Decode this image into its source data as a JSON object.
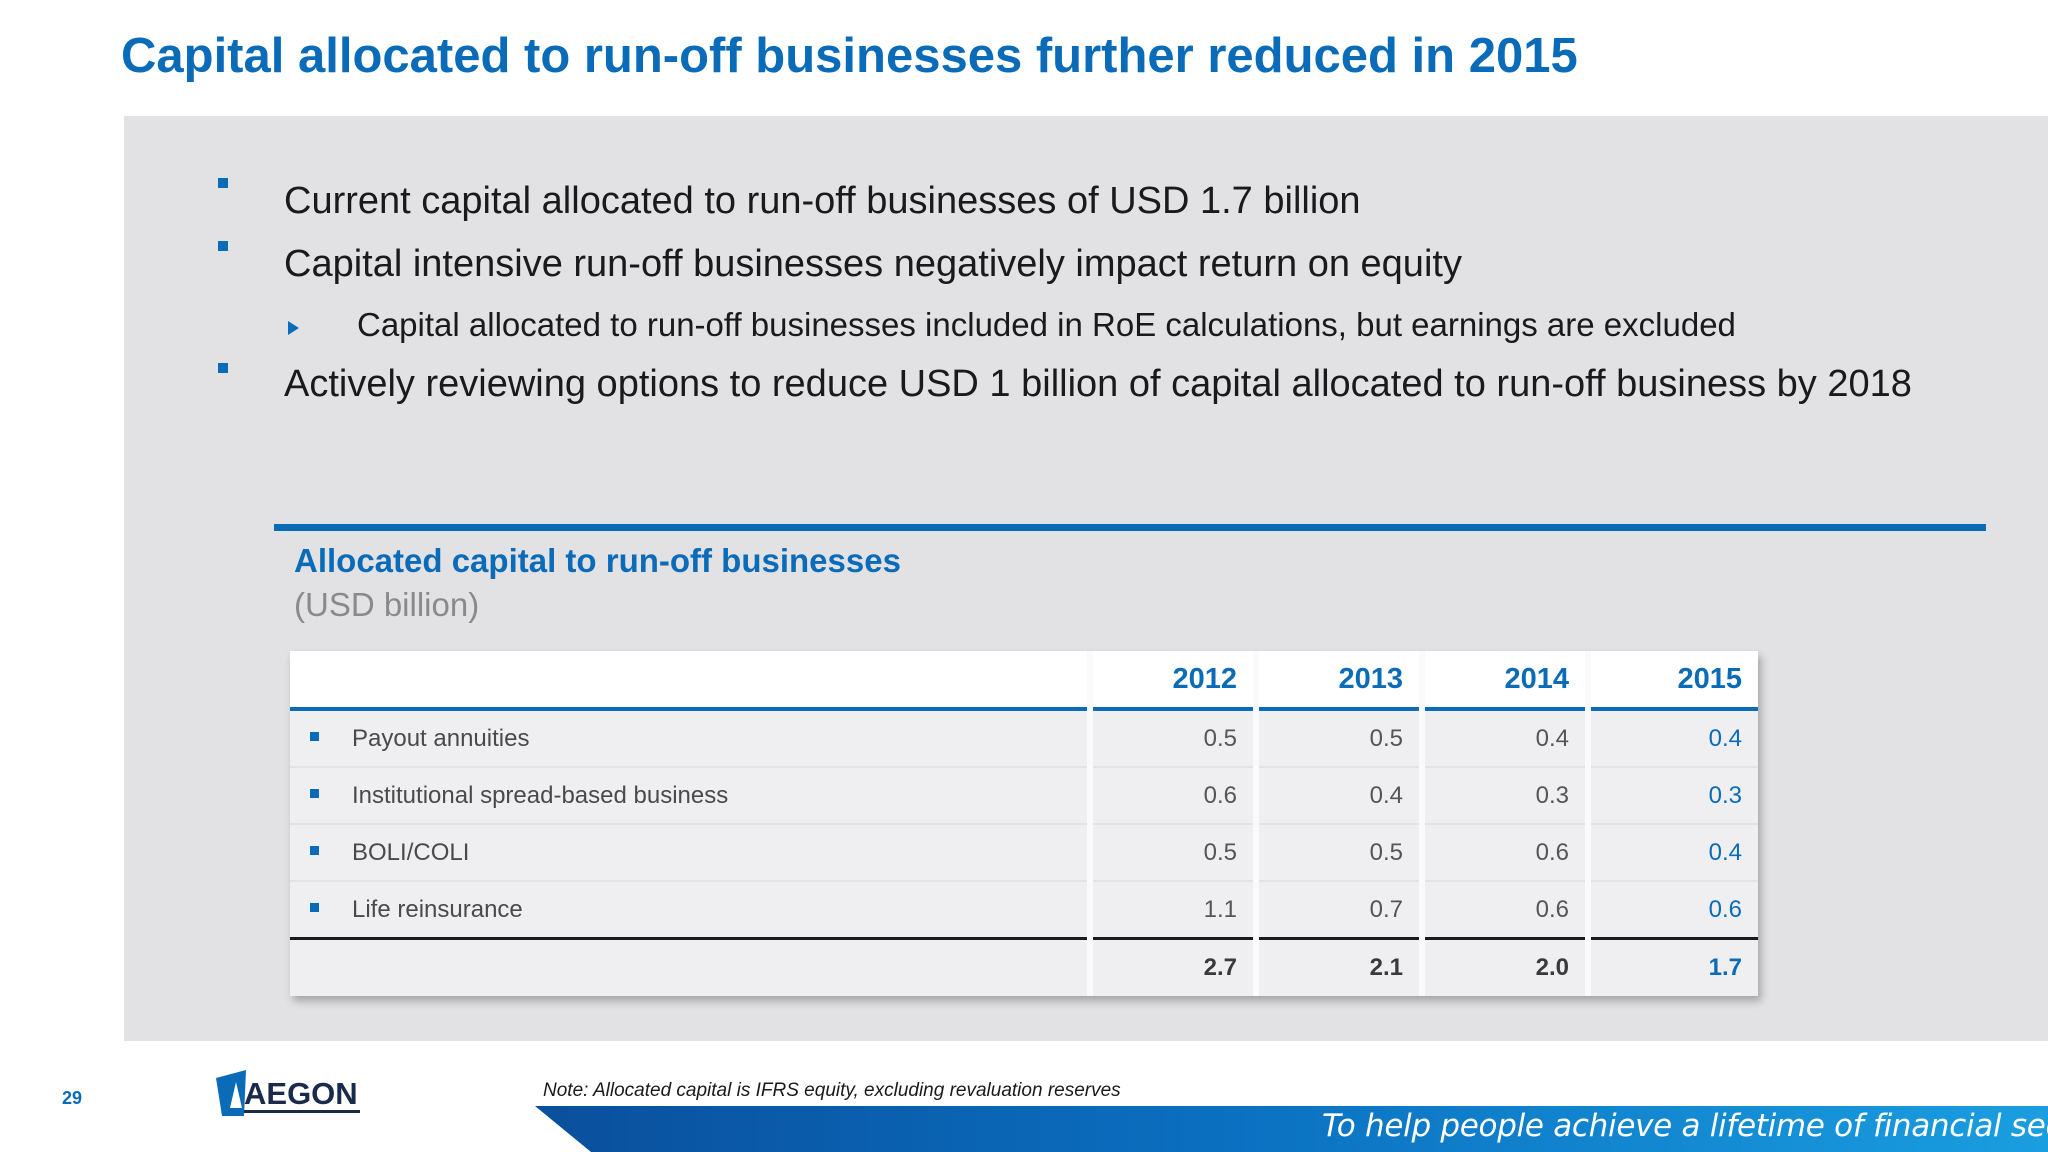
{
  "slide": {
    "title": "Capital allocated to run-off businesses further reduced in 2015",
    "page_number": "29"
  },
  "bullets": {
    "items": [
      "Current capital allocated to run-off businesses of USD 1.7 billion",
      "Capital intensive run-off businesses negatively impact return on equity",
      "Actively reviewing options to reduce USD 1 billion of capital allocated to run-off business by 2018"
    ],
    "sub_item": "Capital allocated to run-off businesses included in RoE calculations, but earnings are excluded"
  },
  "table": {
    "heading": "Allocated capital to run-off businesses",
    "unit": "(USD billion)",
    "years": [
      "2012",
      "2013",
      "2014",
      "2015"
    ],
    "rows": [
      {
        "label": "Payout annuities",
        "values": [
          "0.5",
          "0.5",
          "0.4",
          "0.4"
        ]
      },
      {
        "label": "Institutional spread-based business",
        "values": [
          "0.6",
          "0.4",
          "0.3",
          "0.3"
        ]
      },
      {
        "label": "BOLI/COLI",
        "values": [
          "0.5",
          "0.5",
          "0.6",
          "0.4"
        ]
      },
      {
        "label": "Life reinsurance",
        "values": [
          "1.1",
          "0.7",
          "0.6",
          "0.6"
        ]
      }
    ],
    "totals": [
      "2.7",
      "2.1",
      "2.0",
      "1.7"
    ]
  },
  "footer": {
    "logo_text": "AEGON",
    "note": "Note: Allocated capital is IFRS equity, excluding revaluation reserves",
    "tagline": "To help people achieve a lifetime of financial security"
  },
  "colors": {
    "brand_blue": "#0a6bb8",
    "panel_gray": "#e2e2e4"
  }
}
